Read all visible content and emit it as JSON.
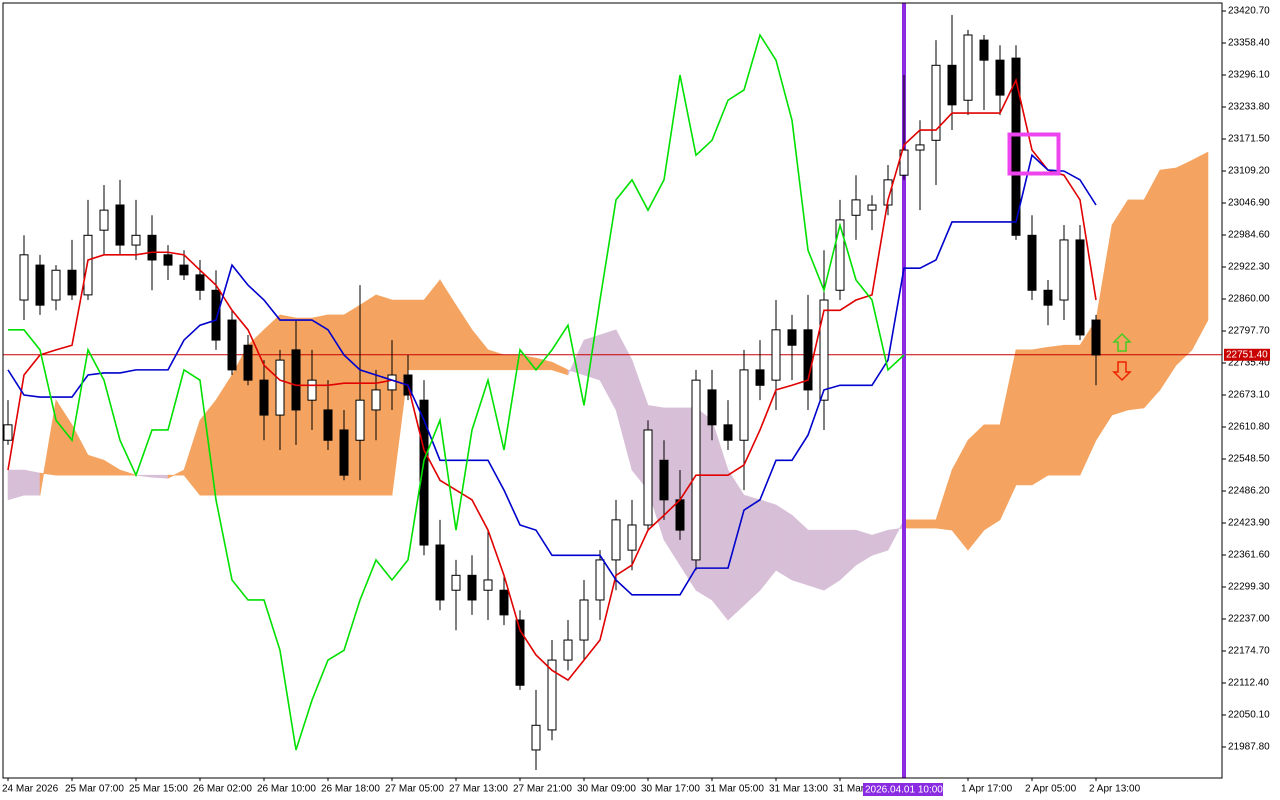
{
  "chart_data": {
    "type": "candlestick",
    "categories": [
      "24 Mar 2026",
      null,
      null,
      null,
      "25 Mar 07:00",
      null,
      null,
      null,
      "25 Mar 15:00",
      null,
      null,
      null,
      "26 Mar 02:00",
      null,
      null,
      null,
      "26 Mar 10:00",
      null,
      null,
      null,
      "26 Mar 18:00",
      null,
      null,
      null,
      "27 Mar 05:00",
      null,
      null,
      null,
      "27 Mar 13:00",
      null,
      null,
      null,
      "27 Mar 21:00",
      null,
      null,
      null,
      "30 Mar 09:00",
      null,
      null,
      null,
      "30 Mar 17:00",
      null,
      null,
      null,
      "31 Mar 05:00",
      null,
      null,
      null,
      "31 Mar 13:00",
      null,
      null,
      null,
      "31 Mar",
      null,
      null,
      null,
      "2026.04.01 10:00",
      null,
      null,
      null,
      "1 Apr 17:00",
      null,
      null,
      null,
      "2 Apr 05:00",
      null,
      null,
      null,
      "2 Apr 13:00",
      null,
      null,
      null,
      null,
      null,
      null,
      null
    ],
    "open": [
      22585,
      22858,
      22926,
      22858,
      22916,
      22868,
      22994,
      23043,
      22965,
      22984,
      22946,
      22926,
      22907,
      22877,
      22819,
      22770,
      22702,
      22634,
      22761,
      22663,
      22644,
      22605,
      22585,
      22644,
      22683,
      22712,
      22663,
      22381,
      22293,
      22322,
      22293,
      22293,
      22235,
      21982,
      22021,
      22157,
      22196,
      22274,
      22352,
      22371,
      22420,
      22546,
      22469,
      22352,
      22683,
      22615,
      22585,
      22722,
      22702,
      22800,
      22800,
      22663,
      22877,
      23023,
      23033,
      23043,
      23101,
      23150,
      23169,
      23315,
      23247,
      23364,
      23325,
      23329,
      22984,
      22877,
      22858,
      22975,
      22819,
      null,
      null,
      null,
      null,
      null,
      null,
      null
    ],
    "high": [
      22663,
      22984,
      22946,
      22926,
      22975,
      23053,
      23082,
      23092,
      23053,
      23023,
      22965,
      22955,
      22936,
      22916,
      22838,
      22790,
      22741,
      22761,
      22819,
      22761,
      22702,
      22644,
      22887,
      22722,
      22780,
      22751,
      22702,
      22430,
      22352,
      22361,
      22410,
      22322,
      22254,
      22099,
      22196,
      22235,
      22313,
      22371,
      22469,
      22469,
      22624,
      22585,
      22527,
      22722,
      22722,
      22663,
      22761,
      22780,
      22858,
      22829,
      22868,
      22955,
      23053,
      23101,
      23062,
      23121,
      23296,
      23208,
      23364,
      23413,
      23384,
      23374,
      23354,
      23354,
      23023,
      22897,
      23004,
      23004,
      22829,
      null,
      null,
      null,
      null,
      null,
      null,
      null
    ],
    "low": [
      22576,
      22819,
      22829,
      22838,
      22858,
      22858,
      22946,
      22946,
      22936,
      22877,
      22897,
      22897,
      22858,
      22761,
      22712,
      22692,
      22585,
      22566,
      22576,
      22605,
      22566,
      22507,
      22507,
      22585,
      22644,
      22663,
      22361,
      22254,
      22215,
      22245,
      22235,
      22225,
      22099,
      21943,
      22001,
      22137,
      22157,
      22235,
      22293,
      22332,
      22410,
      22430,
      22391,
      22332,
      22585,
      22566,
      22488,
      22663,
      22644,
      22702,
      22644,
      22605,
      22858,
      22975,
      22994,
      23023,
      23092,
      23033,
      23082,
      23189,
      23218,
      23228,
      23218,
      22975,
      22858,
      22809,
      22819,
      22780,
      22692,
      null,
      null,
      null,
      null,
      null,
      null,
      null
    ],
    "close": [
      22615,
      22946,
      22848,
      22916,
      22868,
      22984,
      23033,
      22965,
      22984,
      22936,
      22926,
      22907,
      22877,
      22780,
      22722,
      22702,
      22634,
      22741,
      22644,
      22702,
      22585,
      22517,
      22663,
      22683,
      22712,
      22673,
      22381,
      22274,
      22322,
      22274,
      22313,
      22245,
      22108,
      22030,
      22157,
      22196,
      22274,
      22352,
      22430,
      22420,
      22605,
      22469,
      22410,
      22702,
      22615,
      22585,
      22722,
      22692,
      22800,
      22770,
      22683,
      22858,
      23014,
      23053,
      23043,
      23092,
      23150,
      23160,
      23315,
      23238,
      23374,
      23325,
      23257,
      22984,
      22877,
      22848,
      22975,
      22790,
      22751,
      null,
      null,
      null,
      null,
      null,
      null,
      null
    ],
    "bull_color": "#ffffff",
    "bear_color": "#000000",
    "lines": [
      {
        "color": "#e00000",
        "values": [
          22527,
          22712,
          22751,
          22761,
          22770,
          22936,
          22946,
          22946,
          22946,
          22951,
          22951,
          22946,
          22916,
          22887,
          22838,
          22800,
          22731,
          22702,
          22692,
          22692,
          22692,
          22696,
          22696,
          22696,
          22702,
          22692,
          22566,
          22507,
          22488,
          22469,
          22410,
          22322,
          22215,
          22167,
          22137,
          22118,
          22157,
          22196,
          22322,
          22342,
          22410,
          22439,
          22469,
          22517,
          22517,
          22517,
          22537,
          22605,
          22683,
          22692,
          22702,
          22838,
          22838,
          22858,
          22868,
          23053,
          23160,
          23189,
          23189,
          23222,
          23222,
          23222,
          23222,
          23286,
          23150,
          23111,
          23101,
          23053,
          22858,
          null,
          null,
          null,
          null,
          null,
          null,
          null
        ]
      },
      {
        "color": "#0000cc",
        "values": [
          22722,
          22673,
          22669,
          22669,
          22669,
          22712,
          22716,
          22716,
          22722,
          22722,
          22722,
          22780,
          22809,
          22819,
          22926,
          22887,
          22858,
          22819,
          22819,
          22819,
          22800,
          22751,
          22722,
          22712,
          22702,
          22692,
          22624,
          22546,
          22546,
          22546,
          22546,
          22488,
          22420,
          22410,
          22361,
          22361,
          22361,
          22361,
          22313,
          22284,
          22284,
          22284,
          22284,
          22336,
          22336,
          22336,
          22449,
          22469,
          22546,
          22546,
          22595,
          22683,
          22692,
          22692,
          22692,
          22741,
          22920,
          22920,
          22936,
          23010,
          23010,
          23010,
          23010,
          23010,
          23140,
          23111,
          23109,
          23092,
          23043,
          null,
          null,
          null,
          null,
          null,
          null,
          null
        ]
      },
      {
        "color": "#00e000",
        "values": [
          22800,
          22800,
          22761,
          22624,
          22585,
          22761,
          22702,
          22585,
          22517,
          22605,
          22605,
          22722,
          22702,
          22469,
          22313,
          22274,
          22274,
          22176,
          21982,
          22079,
          22157,
          22176,
          22274,
          22352,
          22313,
          22352,
          22546,
          22624,
          22410,
          22605,
          22702,
          22566,
          22761,
          22722,
          22761,
          22809,
          22653,
          22858,
          23053,
          23092,
          23033,
          23092,
          23296,
          23140,
          23169,
          23247,
          23267,
          23374,
          23325,
          23208,
          22955,
          22877,
          23004,
          22897,
          22858,
          22722,
          22751,
          null,
          null,
          null,
          null,
          null,
          null,
          null,
          null,
          null,
          null,
          null,
          null,
          null,
          null,
          null,
          null,
          null,
          null,
          null
        ]
      }
    ],
    "cloud": {
      "span_a": [
        22469,
        22478,
        22478,
        22663,
        22615,
        22556,
        22546,
        22527,
        22517,
        22513,
        22511,
        22527,
        22624,
        22663,
        22712,
        22770,
        22800,
        22829,
        22823,
        22823,
        22829,
        22829,
        22848,
        22868,
        22858,
        22858,
        22858,
        22897,
        22848,
        22800,
        22761,
        22751,
        22751,
        22745,
        22737,
        22722,
        22712,
        22702,
        22644,
        22527,
        22488,
        22391,
        22342,
        22293,
        22274,
        22235,
        22264,
        22293,
        22332,
        22313,
        22303,
        22293,
        22313,
        22342,
        22361,
        22371,
        22430,
        22430,
        22430,
        22527,
        22585,
        22615,
        22615,
        22761,
        22761,
        22766,
        22770,
        22770,
        22819,
        23004,
        23053,
        23053,
        23111,
        23115,
        23130,
        23146
      ],
      "span_b": [
        22527,
        22527,
        22521,
        22517,
        22517,
        22517,
        22517,
        22517,
        22517,
        22517,
        22517,
        22517,
        22478,
        22478,
        22478,
        22478,
        22478,
        22478,
        22478,
        22478,
        22478,
        22478,
        22478,
        22478,
        22478,
        22722,
        22722,
        22722,
        22722,
        22722,
        22722,
        22722,
        22722,
        22722,
        22722,
        22712,
        22780,
        22790,
        22800,
        22741,
        22653,
        22648,
        22648,
        22648,
        22624,
        22527,
        22478,
        22469,
        22459,
        22439,
        22410,
        22410,
        22410,
        22410,
        22400,
        22410,
        22414,
        22414,
        22414,
        22410,
        22371,
        22410,
        22430,
        22498,
        22498,
        22517,
        22517,
        22517,
        22585,
        22634,
        22644,
        22648,
        22683,
        22731,
        22761,
        22819
      ],
      "up_color": "#f4a460",
      "down_color": "#d8bfd8"
    },
    "current_price": {
      "value": 22751.4,
      "label": "22751.40",
      "color": "#c80000"
    },
    "vline": {
      "at": 56,
      "color": "#8a2be2"
    },
    "ylim": [
      21927.4,
      23436.3
    ],
    "yticks": [
      {
        "value": 23420.7,
        "label": "23420.70"
      },
      {
        "value": 23358.4,
        "label": "23358.40"
      },
      {
        "value": 23296.1,
        "label": "23296.10"
      },
      {
        "value": 23233.8,
        "label": "23233.80"
      },
      {
        "value": 23171.5,
        "label": "23171.50"
      },
      {
        "value": 23109.2,
        "label": "23109.20"
      },
      {
        "value": 23046.9,
        "label": "23046.90"
      },
      {
        "value": 22984.6,
        "label": "22984.60"
      },
      {
        "value": 22922.3,
        "label": "22922.30"
      },
      {
        "value": 22860,
        "label": "22860.00"
      },
      {
        "value": 22797.7,
        "label": "22797.70"
      },
      {
        "value": 22735.4,
        "label": "22735.40"
      },
      {
        "value": 22673.1,
        "label": "22673.10"
      },
      {
        "value": 22610.8,
        "label": "22610.80"
      },
      {
        "value": 22548.5,
        "label": "22548.50"
      },
      {
        "value": 22486.2,
        "label": "22486.20"
      },
      {
        "value": 22423.9,
        "label": "22423.90"
      },
      {
        "value": 22361.6,
        "label": "22361.60"
      },
      {
        "value": 22299.3,
        "label": "22299.30"
      },
      {
        "value": 22237,
        "label": "22237.00"
      },
      {
        "value": 22174.7,
        "label": "22174.70"
      },
      {
        "value": 22112.4,
        "label": "22112.40"
      },
      {
        "value": 22050.1,
        "label": "22050.10"
      },
      {
        "value": 21987.8,
        "label": "21987.80"
      }
    ]
  }
}
